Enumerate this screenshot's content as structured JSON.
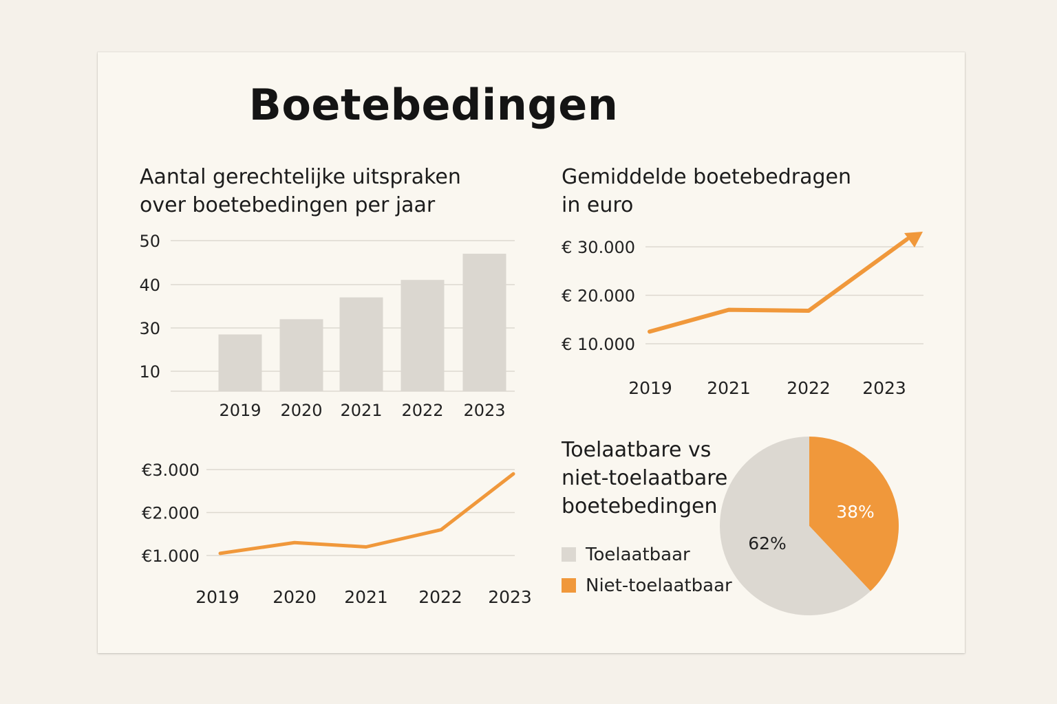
{
  "title": "Boetebedingen",
  "colors": {
    "bar": "#dbd7d0",
    "accent": "#f0983b",
    "pie_grey": "#dcd8d1",
    "grid": "#ddd8cf"
  },
  "chart_data": [
    {
      "type": "bar",
      "title_lines": [
        "Aantal gerechtelijke uitspraken",
        "over boetebedingen per jaar"
      ],
      "categories": [
        "2019",
        "2020",
        "2021",
        "2022",
        "2023"
      ],
      "values": [
        27,
        32,
        37,
        41,
        47
      ],
      "yticks": [
        10,
        30,
        40,
        50
      ],
      "ytick_labels": [
        "10",
        "30",
        "40",
        "50"
      ],
      "ylim": [
        0,
        50
      ],
      "grid": true
    },
    {
      "type": "line",
      "title_lines": [
        "Gemiddelde boetebedragen",
        "in euro"
      ],
      "categories": [
        "2019",
        "2021",
        "2022",
        "2023"
      ],
      "values": [
        12500,
        17000,
        16800,
        32500
      ],
      "yticks": [
        10000,
        20000,
        30000
      ],
      "ytick_labels": [
        "€ 10.000",
        "€ 20.000",
        "€ 30.000"
      ],
      "grid": true,
      "arrow": true
    },
    {
      "type": "line",
      "categories": [
        "2019",
        "2020",
        "2021",
        "2022",
        "2023"
      ],
      "values": [
        1050,
        1300,
        1200,
        1600,
        2900
      ],
      "yticks": [
        1000,
        2000,
        3000
      ],
      "ytick_labels": [
        "€1.000",
        "€2.000",
        "€3.000"
      ],
      "grid": true
    },
    {
      "type": "pie",
      "title_lines": [
        "Toelaatbare vs",
        "niet-toelaatbare",
        "boetebedingen"
      ],
      "slices": [
        {
          "label": "Niet-toelaatbaar",
          "value": 38,
          "display": "38%",
          "color": "#f0983b"
        },
        {
          "label": "Toelaatbaar",
          "value": 62,
          "display": "62%",
          "color": "#dcd8d1"
        }
      ],
      "legend": [
        {
          "label": "Toelaatbaar",
          "color": "#dcd8d1"
        },
        {
          "label": "Niet-toelaatbaar",
          "color": "#f0983b"
        }
      ]
    }
  ]
}
